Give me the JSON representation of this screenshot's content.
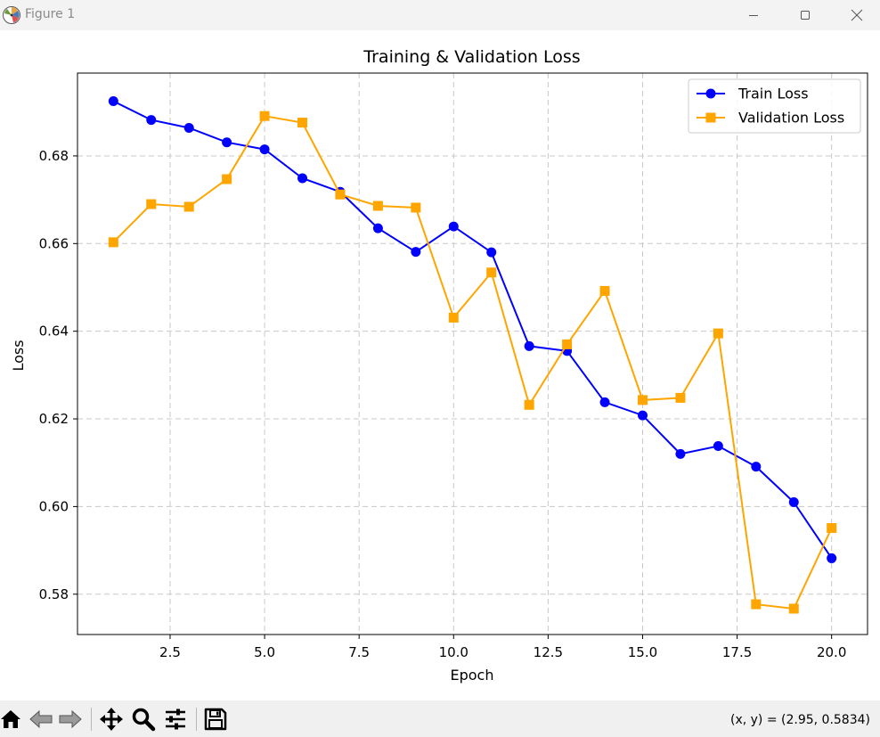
{
  "window": {
    "title": "Figure 1",
    "controls": {
      "minimize": "minimize",
      "maximize": "maximize",
      "close": "close"
    }
  },
  "toolbar": {
    "tools": [
      "home-icon",
      "back-arrow-icon",
      "forward-arrow-icon",
      "pan-icon",
      "zoom-icon",
      "configure-subplots-icon",
      "save-icon"
    ],
    "coords": "(x, y) = (2.95, 0.5834)"
  },
  "chart_data": {
    "type": "line",
    "title": "Training & Validation Loss",
    "xlabel": "Epoch",
    "ylabel": "Loss",
    "xlim": [
      0.05,
      20.95
    ],
    "ylim": [
      0.5708,
      0.6989
    ],
    "xticks": [
      2.5,
      5.0,
      7.5,
      10.0,
      12.5,
      15.0,
      17.5,
      20.0
    ],
    "xtick_labels": [
      "2.5",
      "5.0",
      "7.5",
      "10.0",
      "12.5",
      "15.0",
      "17.5",
      "20.0"
    ],
    "yticks": [
      0.58,
      0.6,
      0.62,
      0.64,
      0.66,
      0.68
    ],
    "ytick_labels": [
      "0.58",
      "0.60",
      "0.62",
      "0.64",
      "0.66",
      "0.68"
    ],
    "grid": true,
    "legend_position": "top-right",
    "x": [
      1,
      2,
      3,
      4,
      5,
      6,
      7,
      8,
      9,
      10,
      11,
      12,
      13,
      14,
      15,
      16,
      17,
      18,
      19,
      20
    ],
    "series": [
      {
        "name": "Train Loss",
        "color": "#0000ff",
        "marker": "circle",
        "values": [
          0.6925,
          0.6882,
          0.6864,
          0.6831,
          0.6815,
          0.6749,
          0.6718,
          0.6635,
          0.6581,
          0.6639,
          0.658,
          0.6366,
          0.6355,
          0.6238,
          0.6208,
          0.612,
          0.6138,
          0.6091,
          0.601,
          0.5882
        ]
      },
      {
        "name": "Validation Loss",
        "color": "#ffa500",
        "marker": "square",
        "values": [
          0.6603,
          0.669,
          0.6684,
          0.6747,
          0.6891,
          0.6876,
          0.6712,
          0.6686,
          0.6682,
          0.6431,
          0.6534,
          0.6232,
          0.637,
          0.6492,
          0.6243,
          0.6248,
          0.6395,
          0.5777,
          0.5767,
          0.5951
        ]
      }
    ]
  }
}
